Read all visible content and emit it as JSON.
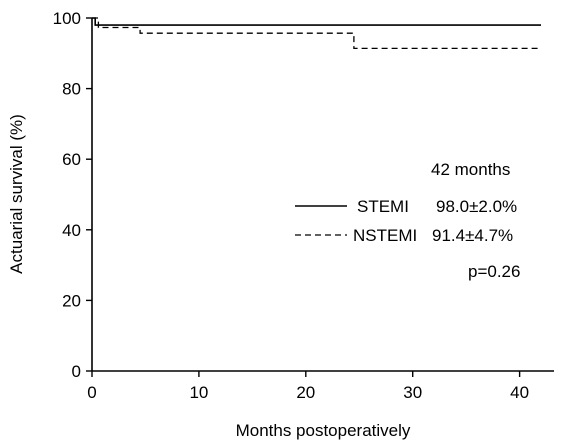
{
  "chart_data": {
    "type": "line",
    "title": "",
    "xlabel": "Months postoperatively",
    "ylabel": "Actuarial survival (%)",
    "xlim": [
      0,
      42
    ],
    "ylim": [
      0,
      100
    ],
    "xticks": [
      0,
      10,
      20,
      30,
      40
    ],
    "yticks": [
      0,
      20,
      40,
      60,
      80,
      100
    ],
    "grid": false,
    "legend_position": "right",
    "annotation_header": "42 months",
    "p_value_text": "p=0.26",
    "series": [
      {
        "name": "STEMI",
        "value_text": "98.0±2.0%",
        "line_style": "solid",
        "color": "#000000",
        "x": [
          0,
          0.3,
          0.3,
          42
        ],
        "y": [
          100,
          100,
          98.0,
          98.0
        ]
      },
      {
        "name": "NSTEMI",
        "value_text": "91.4±4.7%",
        "line_style": "dashed",
        "color": "#000000",
        "x": [
          0,
          0.6,
          0.6,
          4.5,
          4.5,
          24.5,
          24.5,
          42
        ],
        "y": [
          100,
          100,
          97.3,
          97.3,
          95.7,
          95.7,
          91.4,
          91.4
        ]
      }
    ]
  }
}
